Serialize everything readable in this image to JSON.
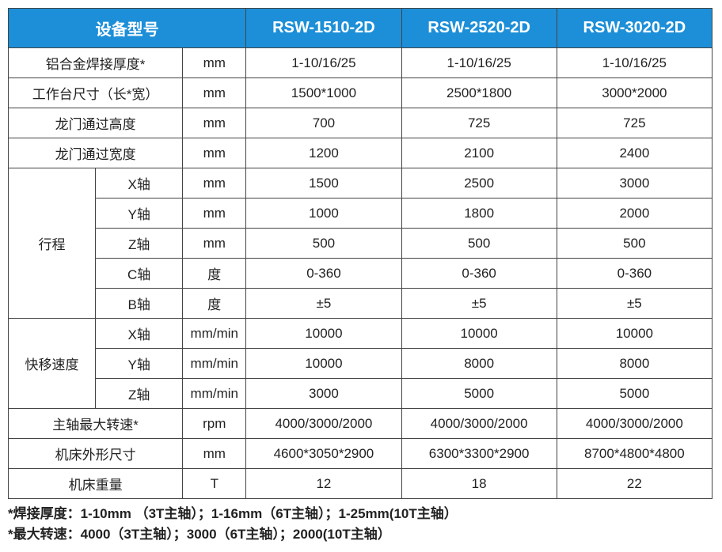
{
  "header": {
    "model_label": "设备型号",
    "m1": "RSW-1510-2D",
    "m2": "RSW-2520-2D",
    "m3": "RSW-3020-2D"
  },
  "rows": {
    "thickness": {
      "label": "铝合金焊接厚度*",
      "unit": "mm",
      "v1": "1-10/16/25",
      "v2": "1-10/16/25",
      "v3": "1-10/16/25"
    },
    "worktable": {
      "label": "工作台尺寸（长*宽）",
      "unit": "mm",
      "v1": "1500*1000",
      "v2": "2500*1800",
      "v3": "3000*2000"
    },
    "gantry_h": {
      "label": "龙门通过高度",
      "unit": "mm",
      "v1": "700",
      "v2": "725",
      "v3": "725"
    },
    "gantry_w": {
      "label": "龙门通过宽度",
      "unit": "mm",
      "v1": "1200",
      "v2": "2100",
      "v3": "2400"
    },
    "travel": {
      "label": "行程",
      "x": {
        "label": "X轴",
        "unit": "mm",
        "v1": "1500",
        "v2": "2500",
        "v3": "3000"
      },
      "y": {
        "label": "Y轴",
        "unit": "mm",
        "v1": "1000",
        "v2": "1800",
        "v3": "2000"
      },
      "z": {
        "label": "Z轴",
        "unit": "mm",
        "v1": "500",
        "v2": "500",
        "v3": "500"
      },
      "c": {
        "label": "C轴",
        "unit": "度",
        "v1": "0-360",
        "v2": "0-360",
        "v3": "0-360"
      },
      "b": {
        "label": "B轴",
        "unit": "度",
        "v1": "±5",
        "v2": "±5",
        "v3": "±5"
      }
    },
    "rapid": {
      "label": "快移速度",
      "x": {
        "label": "X轴",
        "unit": "mm/min",
        "v1": "10000",
        "v2": "10000",
        "v3": "10000"
      },
      "y": {
        "label": "Y轴",
        "unit": "mm/min",
        "v1": "10000",
        "v2": "8000",
        "v3": "8000"
      },
      "z": {
        "label": "Z轴",
        "unit": "mm/min",
        "v1": "3000",
        "v2": "5000",
        "v3": "5000"
      }
    },
    "spindle": {
      "label": "主轴最大转速*",
      "unit": "rpm",
      "v1": "4000/3000/2000",
      "v2": "4000/3000/2000",
      "v3": "4000/3000/2000"
    },
    "outline": {
      "label": "机床外形尺寸",
      "unit": "mm",
      "v1": "4600*3050*2900",
      "v2": "6300*3300*2900",
      "v3": "8700*4800*4800"
    },
    "weight": {
      "label": "机床重量",
      "unit": "T",
      "v1": "12",
      "v2": "18",
      "v3": "22"
    }
  },
  "notes": {
    "n1": "*焊接厚度：1-10mm （3T主轴）；1-16mm（6T主轴）；1-25mm(10T主轴）",
    "n2": "*最大转速：4000（3T主轴）；3000（6T主轴）；2000(10T主轴）"
  },
  "style": {
    "header_bg": "#1d8fd8",
    "header_fg": "#ffffff",
    "border_color": "#444444",
    "body_fontsize": 17,
    "header_fontsize": 20
  }
}
